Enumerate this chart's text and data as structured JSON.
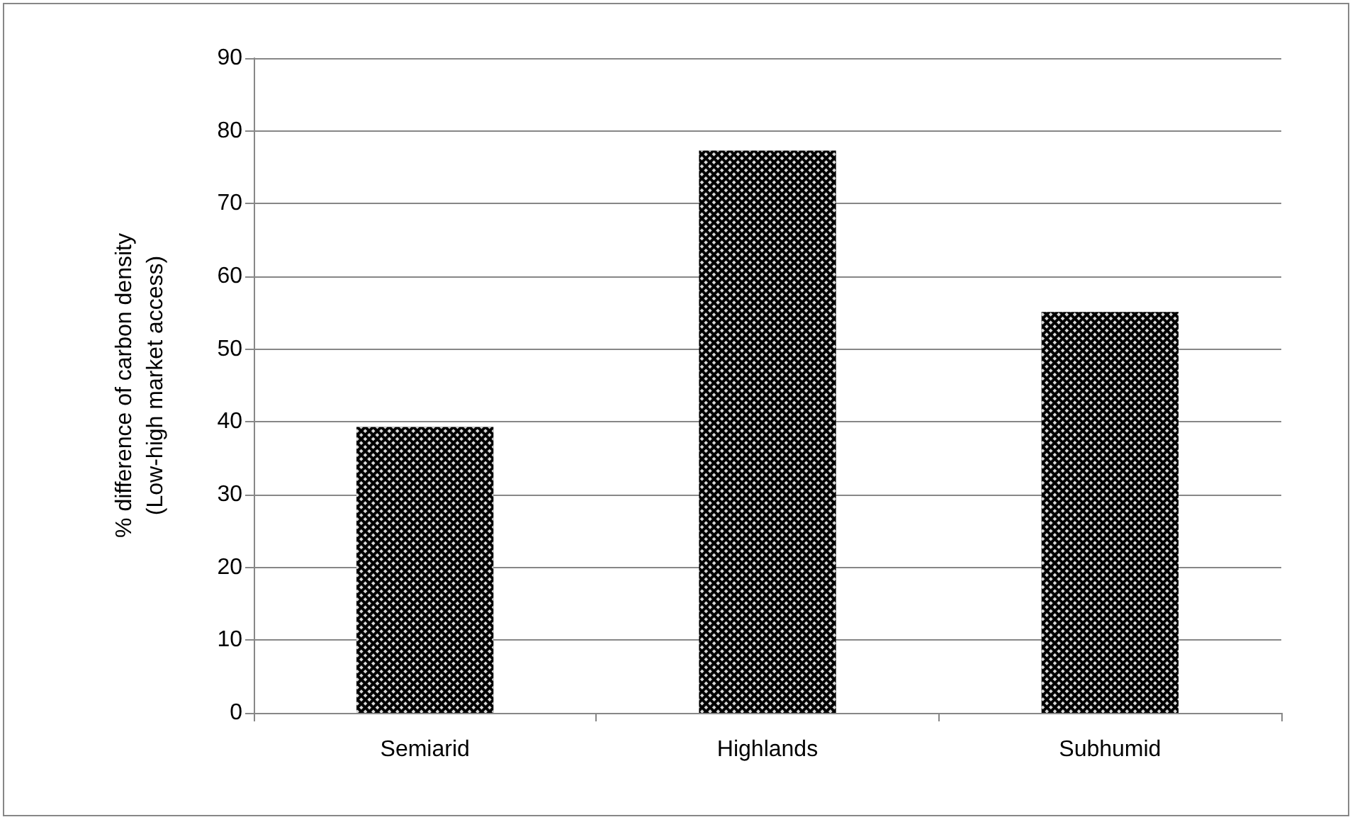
{
  "chart_data": {
    "type": "bar",
    "ylabel": "% difference of carbon density\n(Low-high market access)",
    "categories": [
      "Semiarid",
      "Highlands",
      "Subhumid"
    ],
    "values": [
      39.3,
      77.3,
      55.1
    ],
    "color": "#000000",
    "ylim": [
      0,
      90
    ],
    "yticks": [
      0,
      10,
      20,
      30,
      40,
      50,
      60,
      70,
      80,
      90
    ],
    "grid": "y"
  }
}
